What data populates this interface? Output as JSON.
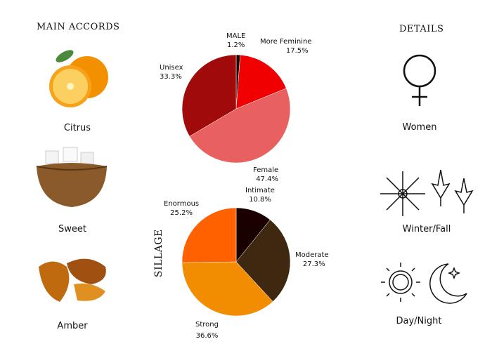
{
  "left": {
    "title": "MAIN ACCORDS",
    "accords": [
      {
        "label": "Citrus",
        "icon": "orange-icon"
      },
      {
        "label": "Sweet",
        "icon": "sugar-bowl-icon"
      },
      {
        "label": "Amber",
        "icon": "amber-icon"
      }
    ]
  },
  "right": {
    "title": "DETAILS",
    "items": [
      {
        "label": "Women",
        "icon": "female-symbol-icon"
      },
      {
        "label": "Winter/Fall",
        "icon": "snowflake-maple-leaf-icon"
      },
      {
        "label": "Day/Night",
        "icon": "sun-moon-icon"
      }
    ]
  },
  "chart_data": [
    {
      "type": "pie",
      "title": "",
      "slices": [
        {
          "label": "MALE",
          "value": 1.2,
          "display": "1.2%",
          "color": "#1a0505"
        },
        {
          "label": "More Feminine",
          "value": 17.5,
          "display": "17.5%",
          "color": "#f00000"
        },
        {
          "label": "Female",
          "value": 47.4,
          "display": "47.4%",
          "color": "#e86060"
        },
        {
          "label": "Unisex",
          "value": 33.3,
          "display": "33.3%",
          "color": "#a00a0a"
        }
      ]
    },
    {
      "type": "pie",
      "title": "SILLAGE",
      "slices": [
        {
          "label": "Intimate",
          "value": 10.8,
          "display": "10.8%",
          "color": "#1a0000"
        },
        {
          "label": "Moderate",
          "value": 27.3,
          "display": "27.3%",
          "color": "#3f2810"
        },
        {
          "label": "Strong",
          "value": 36.6,
          "display": "36.6%",
          "color": "#f28c00"
        },
        {
          "label": "Enormous",
          "value": 25.2,
          "display": "25.2%",
          "color": "#ff6000"
        }
      ]
    }
  ]
}
